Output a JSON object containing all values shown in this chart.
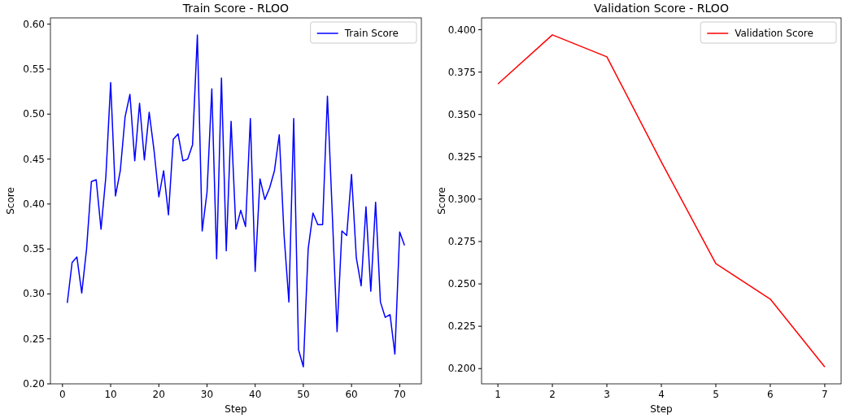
{
  "chart_data": [
    {
      "type": "line",
      "title": "Train Score - RLOO",
      "xlabel": "Step",
      "ylabel": "Score",
      "xlim": [
        -2.5,
        74.5
      ],
      "xticks": [
        0,
        10,
        20,
        30,
        40,
        50,
        60,
        70
      ],
      "ylim": [
        0.2,
        0.607
      ],
      "yticks": [
        {
          "value": 0.2,
          "label": "0.20"
        },
        {
          "value": 0.25,
          "label": "0.25"
        },
        {
          "value": 0.3,
          "label": "0.30"
        },
        {
          "value": 0.35,
          "label": "0.35"
        },
        {
          "value": 0.4,
          "label": "0.40"
        },
        {
          "value": 0.45,
          "label": "0.45"
        },
        {
          "value": 0.5,
          "label": "0.50"
        },
        {
          "value": 0.55,
          "label": "0.55"
        },
        {
          "value": 0.6,
          "label": "0.60"
        }
      ],
      "legend": "top right",
      "grid": false,
      "x": [
        1,
        2,
        3,
        4,
        5,
        6,
        7,
        8,
        9,
        10,
        11,
        12,
        13,
        14,
        15,
        16,
        17,
        18,
        19,
        20,
        21,
        22,
        23,
        24,
        25,
        26,
        27,
        28,
        29,
        30,
        31,
        32,
        33,
        34,
        35,
        36,
        37,
        38,
        39,
        40,
        41,
        42,
        43,
        44,
        45,
        46,
        47,
        48,
        49,
        50,
        51,
        52,
        53,
        54,
        55,
        56,
        57,
        58,
        59,
        60,
        61,
        62,
        63,
        64,
        65,
        66,
        67,
        68,
        69,
        70,
        71
      ],
      "series": [
        {
          "name": "Train Score",
          "color": "#0000ff",
          "values": [
            0.29,
            0.335,
            0.341,
            0.301,
            0.35,
            0.425,
            0.427,
            0.372,
            0.43,
            0.535,
            0.409,
            0.437,
            0.497,
            0.522,
            0.448,
            0.512,
            0.449,
            0.502,
            0.46,
            0.408,
            0.437,
            0.388,
            0.472,
            0.478,
            0.448,
            0.45,
            0.466,
            0.588,
            0.37,
            0.413,
            0.528,
            0.339,
            0.54,
            0.348,
            0.492,
            0.372,
            0.393,
            0.375,
            0.495,
            0.325,
            0.428,
            0.405,
            0.418,
            0.437,
            0.477,
            0.365,
            0.291,
            0.495,
            0.238,
            0.219,
            0.35,
            0.39,
            0.377,
            0.377,
            0.52,
            0.39,
            0.258,
            0.37,
            0.365,
            0.433,
            0.34,
            0.309,
            0.397,
            0.303,
            0.402,
            0.291,
            0.274,
            0.277,
            0.233,
            0.369,
            0.354
          ]
        }
      ]
    },
    {
      "type": "line",
      "title": "Validation Score - RLOO",
      "xlabel": "Step",
      "ylabel": "Score",
      "xlim": [
        0.7,
        7.3
      ],
      "xticks": [
        1,
        2,
        3,
        4,
        5,
        6,
        7
      ],
      "ylim": [
        0.191,
        0.407
      ],
      "yticks": [
        {
          "value": 0.2,
          "label": "0.200"
        },
        {
          "value": 0.225,
          "label": "0.225"
        },
        {
          "value": 0.25,
          "label": "0.250"
        },
        {
          "value": 0.275,
          "label": "0.275"
        },
        {
          "value": 0.3,
          "label": "0.300"
        },
        {
          "value": 0.325,
          "label": "0.325"
        },
        {
          "value": 0.35,
          "label": "0.350"
        },
        {
          "value": 0.375,
          "label": "0.375"
        },
        {
          "value": 0.4,
          "label": "0.400"
        }
      ],
      "legend": "top right",
      "grid": false,
      "x": [
        1,
        2,
        3,
        4,
        5,
        6,
        7
      ],
      "series": [
        {
          "name": "Validation Score",
          "color": "#ff0000",
          "values": [
            0.368,
            0.397,
            0.384,
            0.322,
            0.262,
            0.241,
            0.201
          ]
        }
      ]
    }
  ]
}
